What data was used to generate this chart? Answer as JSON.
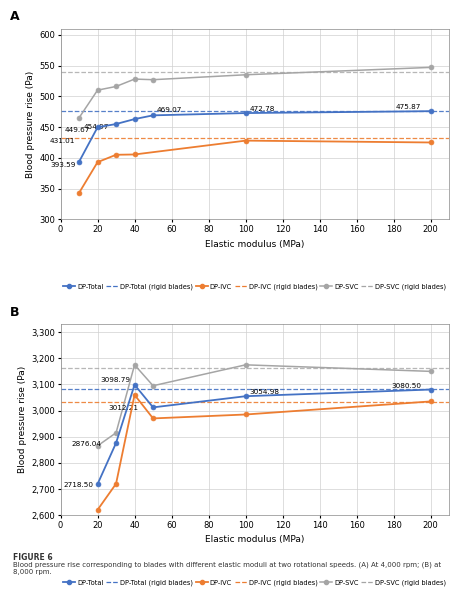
{
  "A": {
    "title": "A",
    "xlabel": "Elastic modulus (MPa)",
    "ylabel": "Blood pressure rise (Pa)",
    "ylim": [
      300,
      610
    ],
    "yticks": [
      300,
      350,
      400,
      450,
      500,
      550,
      600
    ],
    "xlim": [
      0,
      210
    ],
    "xticks": [
      0,
      20,
      40,
      60,
      80,
      100,
      120,
      140,
      160,
      180,
      200
    ],
    "dp_total_x": [
      10,
      20,
      30,
      40,
      50,
      100,
      200
    ],
    "dp_total_y": [
      393.59,
      449.67,
      454.97,
      463.0,
      469.07,
      472.78,
      475.87
    ],
    "dp_total_rigid": 476.5,
    "dp_ivc_x": [
      10,
      20,
      30,
      40,
      100,
      200
    ],
    "dp_ivc_y": [
      343.0,
      393.0,
      405.0,
      405.5,
      428.0,
      425.0
    ],
    "dp_ivc_rigid": 433.0,
    "dp_svc_x": [
      10,
      20,
      30,
      40,
      50,
      100,
      200
    ],
    "dp_svc_y": [
      465.0,
      510.0,
      516.0,
      528.0,
      527.0,
      535.0,
      547.0
    ],
    "dp_svc_rigid": 540.0,
    "ann_total": [
      [
        50,
        469.07,
        "469.07",
        52,
        474,
        "left"
      ],
      [
        100,
        472.78,
        "472.78",
        102,
        477,
        "left"
      ],
      [
        200,
        475.87,
        "475.87",
        195,
        480,
        "right"
      ]
    ],
    "ann_other": [
      [
        10,
        393.59,
        "393.59",
        8,
        385,
        "right"
      ],
      [
        20,
        449.67,
        "449.67",
        16,
        442,
        "right"
      ],
      [
        30,
        454.97,
        "454.97",
        26,
        447,
        "right"
      ],
      [
        10,
        431.01,
        "431.01",
        8,
        424,
        "right"
      ]
    ]
  },
  "B": {
    "title": "B",
    "xlabel": "Elastic modulus (MPa)",
    "ylabel": "Blood pressure rise (Pa)",
    "ylim": [
      2600,
      3330
    ],
    "yticks": [
      2600,
      2700,
      2800,
      2900,
      3000,
      3100,
      3200,
      3300
    ],
    "xlim": [
      0,
      210
    ],
    "xticks": [
      0,
      20,
      40,
      60,
      80,
      100,
      120,
      140,
      160,
      180,
      200
    ],
    "dp_total_x": [
      20,
      30,
      40,
      50,
      100,
      200
    ],
    "dp_total_y": [
      2718.5,
      2876.04,
      3098.79,
      3012.21,
      3054.98,
      3080.5
    ],
    "dp_total_rigid": 3082.0,
    "dp_ivc_x": [
      20,
      30,
      40,
      50,
      100,
      200
    ],
    "dp_ivc_y": [
      2620.0,
      2720.0,
      3060.0,
      2970.0,
      2985.0,
      3035.0
    ],
    "dp_ivc_rigid": 3033.0,
    "dp_svc_x": [
      20,
      30,
      40,
      50,
      100,
      200
    ],
    "dp_svc_y": [
      2865.0,
      2915.0,
      3175.0,
      3095.0,
      3175.0,
      3150.0
    ],
    "dp_svc_rigid": 3162.0,
    "ann_total": [
      [
        40,
        3098.79,
        "3098.79",
        38,
        3108,
        "right"
      ],
      [
        100,
        3054.98,
        "3054.98",
        102,
        3062,
        "left"
      ],
      [
        200,
        3080.5,
        "3080.50",
        195,
        3088,
        "right"
      ]
    ],
    "ann_other": [
      [
        20,
        2718.5,
        "2718.50",
        18,
        2708,
        "right"
      ],
      [
        30,
        2876.04,
        "2876.04",
        22,
        2866,
        "right"
      ],
      [
        50,
        3012.21,
        "3012.21",
        42,
        3002,
        "right"
      ]
    ]
  },
  "colors": {
    "dp_total": "#4472c4",
    "dp_ivc": "#ed7d31",
    "dp_svc": "#a5a5a5"
  },
  "figcaption_title": "FIGURE 6",
  "figcaption_body": "Blood pressure rise corresponding to blades with different elastic moduli at two rotational speeds. (A) At 4,000 rpm; (B) at 8,000 rpm."
}
